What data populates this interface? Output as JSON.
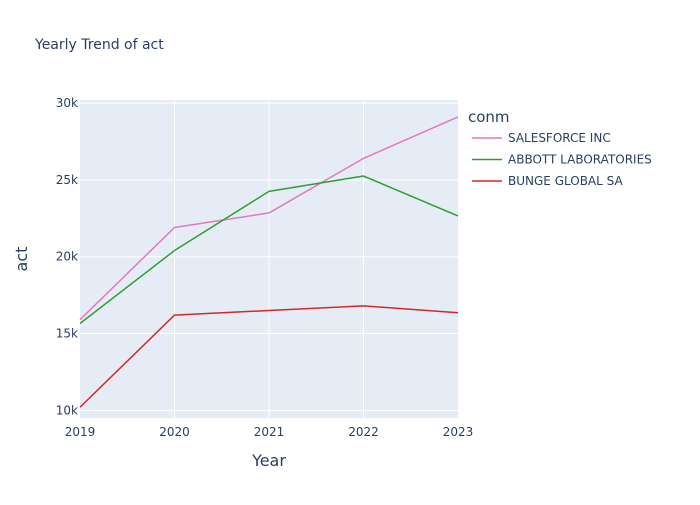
{
  "chart_data": {
    "type": "line",
    "title": "Yearly Trend of act",
    "xlabel": "Year",
    "ylabel": "act",
    "x": [
      "2019",
      "2020",
      "2021",
      "2022",
      "2023"
    ],
    "xlim": [
      2019,
      2023
    ],
    "ylim": [
      9500,
      30200
    ],
    "yticks": [
      10000,
      15000,
      20000,
      25000,
      30000
    ],
    "ytick_labels": [
      "10k",
      "15k",
      "20k",
      "25k",
      "30k"
    ],
    "grid": true,
    "legend": {
      "title": "conm",
      "position": "right"
    },
    "series": [
      {
        "name": "SALESFORCE INC",
        "color": "#e377c2",
        "values": [
          15900,
          21900,
          22850,
          26400,
          29100
        ]
      },
      {
        "name": "ABBOTT LABORATORIES",
        "color": "#2ca02c",
        "values": [
          15650,
          20400,
          24250,
          25250,
          22650
        ]
      },
      {
        "name": "BUNGE GLOBAL SA",
        "color": "#d62728",
        "values": [
          10200,
          16200,
          16500,
          16800,
          16350
        ]
      }
    ],
    "background": "#e5ecf6"
  }
}
